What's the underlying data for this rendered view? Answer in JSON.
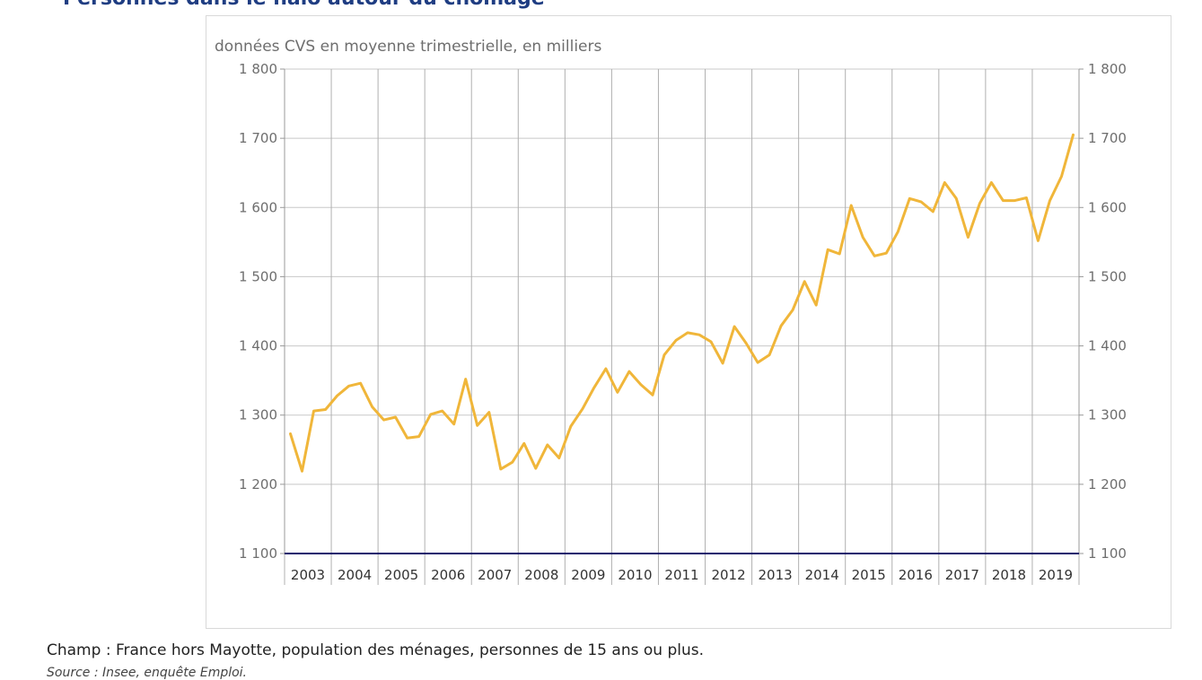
{
  "page": {
    "title": "Personnes dans le halo autour du chômage",
    "footnote": "Champ : France hors Mayotte, population des ménages, personnes de 15 ans ou plus.",
    "source": "Source : Insee, enquête Emploi."
  },
  "chart_data": {
    "type": "line",
    "title": "",
    "ylabel": "données CVS en moyenne trimestrielle, en milliers",
    "ylim": [
      1100,
      1800
    ],
    "yticks": [
      1100,
      1200,
      1300,
      1400,
      1500,
      1600,
      1700,
      1800
    ],
    "ytick_labels": [
      "1 100",
      "1 200",
      "1 300",
      "1 400",
      "1 500",
      "1 600",
      "1 700",
      "1 800"
    ],
    "years": [
      "2003",
      "2004",
      "2005",
      "2006",
      "2007",
      "2008",
      "2009",
      "2010",
      "2011",
      "2012",
      "2013",
      "2014",
      "2015",
      "2016",
      "2017",
      "2018",
      "2019"
    ],
    "grid": true,
    "right_axis": true,
    "line_color": "#f0b63a",
    "baseline_color": "#1a1a6e",
    "series": [
      {
        "values": [
          1273,
          1219,
          1306,
          1308,
          1328,
          1342,
          1346,
          1312,
          1293,
          1297,
          1267,
          1269,
          1301,
          1306,
          1287,
          1352,
          1285,
          1304,
          1222,
          1232,
          1259,
          1223,
          1257,
          1238,
          1284,
          1309,
          1340,
          1367,
          1333,
          1363,
          1344,
          1329,
          1387,
          1408,
          1419,
          1416,
          1406,
          1375,
          1428,
          1404,
          1376,
          1387,
          1429,
          1452,
          1493,
          1459,
          1539,
          1533,
          1603,
          1557,
          1530,
          1534,
          1565,
          1613,
          1608,
          1594,
          1636,
          1613,
          1557,
          1606,
          1636,
          1610,
          1610,
          1614,
          1552,
          1610,
          1645,
          1705
        ]
      }
    ]
  }
}
